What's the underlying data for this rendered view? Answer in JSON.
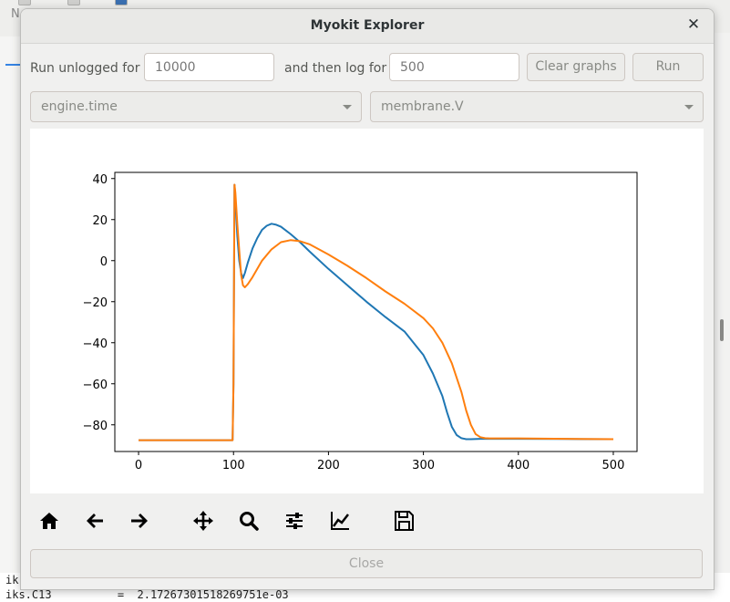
{
  "background": {
    "left_letter": "N",
    "code_lines": [
      "ik",
      "iks.C13          =  2.17267301518269751e-03"
    ]
  },
  "dialog": {
    "title": "Myokit Explorer",
    "close_icon": "close-icon"
  },
  "controls": {
    "unlogged_label": "Run unlogged for",
    "unlogged_value": "10000",
    "log_label": "and then log for",
    "log_value": "500",
    "clear_label": "Clear graphs",
    "run_label": "Run",
    "x_variable": "engine.time",
    "y_variable": "membrane.V"
  },
  "toolbar": {
    "icons": [
      "home-icon",
      "back-arrow-icon",
      "forward-arrow-icon",
      "pan-icon",
      "zoom-icon",
      "subplots-icon",
      "axes-edit-icon",
      "save-icon"
    ]
  },
  "footer": {
    "close_label": "Close"
  },
  "chart_data": {
    "type": "line",
    "title": "",
    "xlabel": "",
    "ylabel": "",
    "xlim": [
      -25,
      525
    ],
    "ylim": [
      -93,
      43
    ],
    "xticks": [
      0,
      100,
      200,
      300,
      400,
      500
    ],
    "yticks": [
      40,
      20,
      0,
      -20,
      -40,
      -60,
      -80
    ],
    "grid": false,
    "series": [
      {
        "color": "#1f77b4",
        "x": [
          0,
          50,
          99,
          100,
          101,
          102,
          104,
          106,
          108,
          110,
          112,
          115,
          120,
          125,
          130,
          135,
          140,
          145,
          150,
          160,
          170,
          180,
          200,
          220,
          240,
          260,
          280,
          300,
          310,
          320,
          325,
          330,
          335,
          340,
          345,
          350,
          360,
          400,
          450,
          500
        ],
        "y": [
          -87.5,
          -87.5,
          -87.5,
          -60,
          37,
          30,
          12,
          0,
          -6,
          -8.5,
          -6,
          -1,
          6,
          11,
          15,
          17,
          18,
          17.5,
          16.5,
          13,
          9,
          4.5,
          -4,
          -12,
          -20,
          -27.5,
          -34.5,
          -46,
          -55,
          -66,
          -74,
          -81,
          -85,
          -86.5,
          -87,
          -87,
          -86.8,
          -86.8,
          -86.9,
          -87
        ]
      },
      {
        "color": "#ff7f0e",
        "x": [
          0,
          50,
          99,
          100,
          101,
          102,
          104,
          106,
          108,
          110,
          112,
          115,
          120,
          125,
          130,
          140,
          150,
          160,
          170,
          180,
          200,
          220,
          240,
          260,
          280,
          300,
          310,
          320,
          330,
          340,
          345,
          350,
          355,
          360,
          365,
          370,
          400,
          450,
          500
        ],
        "y": [
          -87.5,
          -87.5,
          -87.5,
          -60,
          37,
          33,
          18,
          5,
          -7,
          -12,
          -13,
          -11.5,
          -8,
          -4,
          0,
          5.5,
          9,
          10,
          9.5,
          8,
          3,
          -2.5,
          -8.5,
          -15,
          -21,
          -28,
          -33,
          -40,
          -50,
          -64,
          -73,
          -80,
          -84.5,
          -86,
          -86.5,
          -86.6,
          -86.6,
          -86.8,
          -87
        ]
      }
    ]
  }
}
